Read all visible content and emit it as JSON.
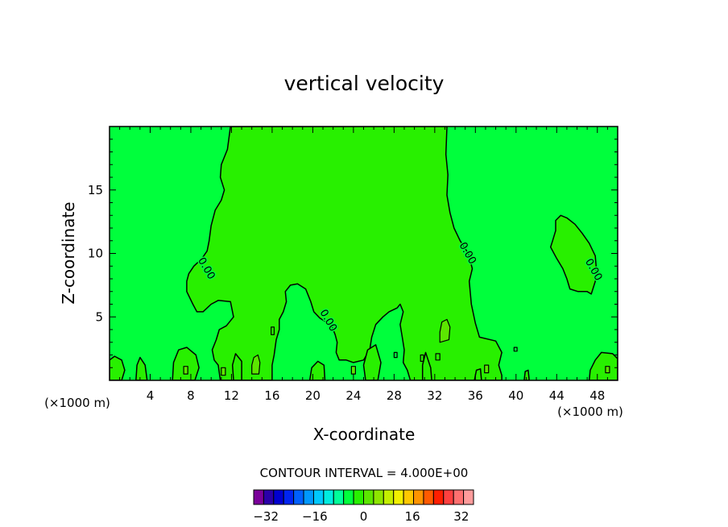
{
  "chart_data": {
    "type": "heatmap",
    "title": "vertical velocity",
    "xlabel": "X-coordinate",
    "ylabel": "Z-coordinate",
    "x_unit_left": "(×1000 m)",
    "x_unit_right": "(×1000 m)",
    "xlim": [
      0,
      50
    ],
    "ylim": [
      0,
      20
    ],
    "x_ticks": [
      4,
      8,
      12,
      16,
      20,
      24,
      28,
      32,
      36,
      40,
      44,
      48
    ],
    "y_ticks": [
      5,
      10,
      15
    ],
    "contour_interval_text": "CONTOUR INTERVAL = 4.000E+00",
    "contour_labels": [
      {
        "text": "0.00",
        "x": 9.5,
        "z": 8.8
      },
      {
        "text": "0.00",
        "x": 21.5,
        "z": 4.7
      },
      {
        "text": "0.00",
        "x": 35.2,
        "z": 10.0
      },
      {
        "text": "0.00",
        "x": 47.6,
        "z": 8.7
      }
    ],
    "colorbar": {
      "min": -36,
      "max": 36,
      "step": 4,
      "tick_values": [
        -32,
        -16,
        0,
        16,
        32
      ],
      "tick_labels": [
        "−32",
        "−16",
        "0",
        "16",
        "32"
      ],
      "colors": [
        "#7a009a",
        "#2a00a8",
        "#0000d0",
        "#0024f0",
        "#0060ff",
        "#0098ff",
        "#00c8ff",
        "#00ece0",
        "#00ff9a",
        "#00ff3c",
        "#28f000",
        "#5ce600",
        "#8ee600",
        "#c4ee00",
        "#f2f000",
        "#ffc800",
        "#ff9400",
        "#ff5a00",
        "#ff1e00",
        "#ff4040",
        "#ff7070",
        "#ff9c9c"
      ]
    },
    "fields": {
      "background_color": "#00ff3c",
      "positive_color": "#28f000",
      "strong_positive_color": "#5ce600",
      "contour_color": "#000000"
    },
    "regions": {
      "updraft": [
        [
          11.9,
          20
        ],
        [
          11.6,
          18.2
        ],
        [
          11.0,
          17.0
        ],
        [
          10.9,
          16.0
        ],
        [
          11.3,
          15.0
        ],
        [
          11.0,
          14.2
        ],
        [
          10.4,
          13.4
        ],
        [
          10.0,
          12.2
        ],
        [
          9.8,
          11.0
        ],
        [
          9.6,
          10.2
        ],
        [
          9.1,
          9.6
        ],
        [
          8.3,
          9.0
        ],
        [
          7.8,
          8.4
        ],
        [
          7.6,
          7.8
        ],
        [
          7.6,
          7.0
        ],
        [
          8.2,
          6.0
        ],
        [
          8.6,
          5.4
        ],
        [
          9.2,
          5.4
        ],
        [
          10.0,
          6.0
        ],
        [
          10.7,
          6.3
        ],
        [
          11.9,
          6.2
        ],
        [
          12.2,
          5.0
        ],
        [
          11.5,
          4.3
        ],
        [
          10.8,
          4.0
        ],
        [
          10.5,
          3.2
        ],
        [
          10.1,
          2.4
        ],
        [
          10.3,
          1.6
        ],
        [
          10.7,
          1.2
        ],
        [
          10.9,
          0
        ],
        [
          16.0,
          0
        ],
        [
          16.0,
          1.2
        ],
        [
          16.2,
          2.0
        ],
        [
          16.4,
          3.2
        ],
        [
          16.7,
          4.0
        ],
        [
          16.7,
          4.8
        ],
        [
          17.1,
          5.4
        ],
        [
          17.4,
          6.2
        ],
        [
          17.3,
          7.0
        ],
        [
          17.8,
          7.5
        ],
        [
          18.5,
          7.6
        ],
        [
          19.3,
          7.2
        ],
        [
          19.8,
          6.2
        ],
        [
          20.1,
          5.4
        ],
        [
          20.7,
          4.9
        ],
        [
          21.3,
          4.6
        ],
        [
          21.9,
          4.2
        ],
        [
          22.2,
          3.6
        ],
        [
          22.4,
          3.0
        ],
        [
          22.3,
          2.2
        ],
        [
          22.6,
          1.6
        ],
        [
          23.3,
          1.6
        ],
        [
          24.0,
          1.4
        ],
        [
          25.0,
          1.6
        ],
        [
          25.6,
          2.4
        ],
        [
          25.8,
          3.4
        ],
        [
          26.2,
          4.4
        ],
        [
          26.9,
          5.0
        ],
        [
          27.5,
          5.4
        ],
        [
          28.3,
          5.7
        ],
        [
          28.6,
          6.0
        ],
        [
          28.9,
          5.4
        ],
        [
          28.6,
          4.4
        ],
        [
          28.8,
          3.4
        ],
        [
          29.0,
          2.4
        ],
        [
          28.9,
          1.4
        ],
        [
          29.3,
          0.8
        ],
        [
          29.6,
          0
        ],
        [
          38.6,
          0
        ],
        [
          38.6,
          0.4
        ],
        [
          38.3,
          1.2
        ],
        [
          38.6,
          2.2
        ],
        [
          38.0,
          3.1
        ],
        [
          36.4,
          3.4
        ],
        [
          36.0,
          4.5
        ],
        [
          35.6,
          6.0
        ],
        [
          35.4,
          7.8
        ],
        [
          35.7,
          8.8
        ],
        [
          35.3,
          10.0
        ],
        [
          34.5,
          11.0
        ],
        [
          33.9,
          12.0
        ],
        [
          33.5,
          13.2
        ],
        [
          33.2,
          14.6
        ],
        [
          33.3,
          16.2
        ],
        [
          33.1,
          17.8
        ],
        [
          33.2,
          20
        ]
      ],
      "patch_right": [
        [
          43.4,
          10.5
        ],
        [
          44.0,
          9.6
        ],
        [
          44.6,
          8.8
        ],
        [
          45.0,
          8.0
        ],
        [
          45.3,
          7.2
        ],
        [
          46.1,
          7.0
        ],
        [
          47.0,
          7.0
        ],
        [
          47.4,
          6.8
        ],
        [
          47.8,
          7.8
        ],
        [
          47.9,
          8.8
        ],
        [
          47.8,
          9.8
        ],
        [
          47.2,
          10.8
        ],
        [
          46.5,
          11.6
        ],
        [
          45.8,
          12.3
        ],
        [
          45.0,
          12.8
        ],
        [
          44.4,
          13.0
        ],
        [
          43.9,
          12.6
        ],
        [
          43.9,
          11.8
        ],
        [
          43.6,
          11.0
        ]
      ],
      "cells_positive": [
        [
          [
            30.8,
            0
          ],
          [
            31.7,
            0
          ],
          [
            31.6,
            1.0
          ],
          [
            31.1,
            2.2
          ],
          [
            30.8,
            1.2
          ]
        ],
        [
          [
            25.2,
            0
          ],
          [
            26.4,
            0
          ],
          [
            26.7,
            1.4
          ],
          [
            26.2,
            2.8
          ],
          [
            25.4,
            2.4
          ],
          [
            25.0,
            1.2
          ]
        ],
        [
          [
            0,
            0
          ],
          [
            1.2,
            0
          ],
          [
            1.5,
            0.8
          ],
          [
            1.2,
            1.6
          ],
          [
            0.5,
            1.9
          ],
          [
            0,
            1.6
          ]
        ],
        [
          [
            2.6,
            0
          ],
          [
            3.7,
            0
          ],
          [
            3.5,
            1.2
          ],
          [
            3.0,
            1.8
          ],
          [
            2.7,
            1.2
          ]
        ],
        [
          [
            6.2,
            0
          ],
          [
            8.4,
            0
          ],
          [
            8.8,
            1.0
          ],
          [
            8.5,
            2.0
          ],
          [
            7.6,
            2.6
          ],
          [
            6.8,
            2.4
          ],
          [
            6.3,
            1.4
          ]
        ],
        [
          [
            12.2,
            0
          ],
          [
            13.0,
            0
          ],
          [
            13.0,
            1.5
          ],
          [
            12.4,
            2.1
          ],
          [
            12.1,
            1.2
          ]
        ],
        [
          [
            19.7,
            0
          ],
          [
            21.2,
            0
          ],
          [
            21.1,
            1.2
          ],
          [
            20.5,
            1.5
          ],
          [
            19.9,
            1.0
          ]
        ],
        [
          [
            47.2,
            0
          ],
          [
            50,
            0
          ],
          [
            50,
            1.7
          ],
          [
            49.5,
            2.1
          ],
          [
            48.4,
            2.2
          ],
          [
            47.8,
            1.6
          ],
          [
            47.3,
            0.8
          ]
        ],
        [
          [
            40.8,
            0
          ],
          [
            41.3,
            0
          ],
          [
            41.2,
            0.8
          ],
          [
            40.9,
            0.7
          ]
        ],
        [
          [
            35.9,
            0
          ],
          [
            36.6,
            0
          ],
          [
            36.5,
            0.9
          ],
          [
            36.1,
            0.8
          ]
        ]
      ],
      "cells_strong": [
        [
          [
            14.0,
            0.5
          ],
          [
            14.7,
            0.5
          ],
          [
            14.8,
            1.4
          ],
          [
            14.6,
            2.0
          ],
          [
            14.2,
            1.8
          ],
          [
            14.0,
            1.2
          ]
        ],
        [
          [
            32.5,
            3.0
          ],
          [
            33.4,
            3.2
          ],
          [
            33.5,
            4.2
          ],
          [
            33.2,
            4.8
          ],
          [
            32.7,
            4.6
          ],
          [
            32.5,
            3.8
          ]
        ],
        [
          [
            7.3,
            0.5
          ],
          [
            7.7,
            0.5
          ],
          [
            7.7,
            1.1
          ],
          [
            7.3,
            1.1
          ]
        ],
        [
          [
            11.0,
            0.4
          ],
          [
            11.4,
            0.4
          ],
          [
            11.4,
            1.0
          ],
          [
            11.0,
            1.0
          ]
        ],
        [
          [
            23.8,
            0.5
          ],
          [
            24.2,
            0.5
          ],
          [
            24.2,
            1.1
          ],
          [
            23.8,
            1.1
          ]
        ],
        [
          [
            36.9,
            0.6
          ],
          [
            37.3,
            0.6
          ],
          [
            37.3,
            1.2
          ],
          [
            36.9,
            1.2
          ]
        ],
        [
          [
            48.8,
            0.6
          ],
          [
            49.2,
            0.6
          ],
          [
            49.2,
            1.1
          ],
          [
            48.8,
            1.1
          ]
        ]
      ],
      "small_contours": [
        [
          [
            15.9,
            3.6
          ],
          [
            16.2,
            3.6
          ],
          [
            16.2,
            4.2
          ],
          [
            15.9,
            4.2
          ]
        ],
        [
          [
            28.0,
            1.8
          ],
          [
            28.3,
            1.8
          ],
          [
            28.3,
            2.2
          ],
          [
            28.0,
            2.2
          ]
        ],
        [
          [
            32.1,
            1.6
          ],
          [
            32.5,
            1.6
          ],
          [
            32.5,
            2.1
          ],
          [
            32.1,
            2.1
          ]
        ],
        [
          [
            39.8,
            2.3
          ],
          [
            40.1,
            2.3
          ],
          [
            40.1,
            2.6
          ],
          [
            39.8,
            2.6
          ]
        ],
        [
          [
            30.6,
            1.5
          ],
          [
            30.9,
            1.5
          ],
          [
            30.9,
            2.0
          ],
          [
            30.6,
            2.0
          ]
        ]
      ]
    }
  }
}
